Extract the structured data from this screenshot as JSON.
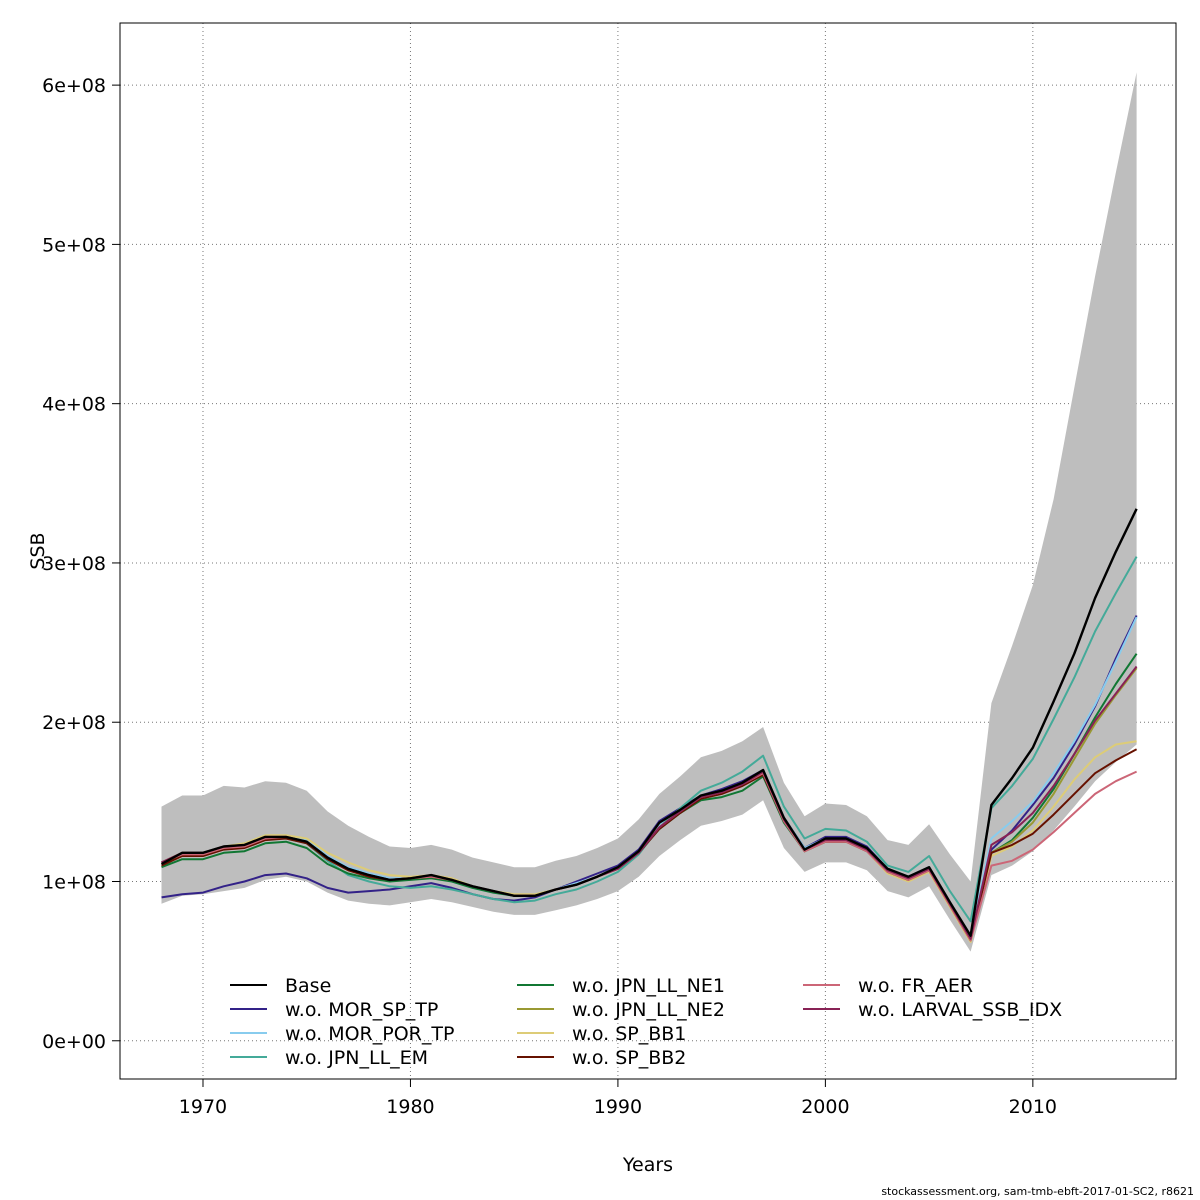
{
  "chart_data": {
    "type": "line",
    "xlabel": "Years",
    "ylabel": "SSB",
    "xlim": [
      1966,
      2016.9
    ],
    "ylim": [
      -24000000,
      639000000
    ],
    "xticks": [
      1970,
      1980,
      1990,
      2000,
      2010
    ],
    "yticks": [
      0,
      100000000,
      200000000,
      300000000,
      400000000,
      500000000,
      600000000
    ],
    "ytick_labels": [
      "0e+00",
      "1e+08",
      "2e+08",
      "3e+08",
      "4e+08",
      "5e+08",
      "6e+08"
    ],
    "grid": true,
    "legend_position": "bottom",
    "x": [
      1968,
      1969,
      1970,
      1971,
      1972,
      1973,
      1974,
      1975,
      1976,
      1977,
      1978,
      1979,
      1980,
      1981,
      1982,
      1983,
      1984,
      1985,
      1986,
      1987,
      1988,
      1989,
      1990,
      1991,
      1992,
      1993,
      1994,
      1995,
      1996,
      1997,
      1998,
      1999,
      2000,
      2001,
      2002,
      2003,
      2004,
      2005,
      2006,
      2007,
      2008,
      2009,
      2010,
      2011,
      2012,
      2013,
      2014,
      2015
    ],
    "band": {
      "color": "#bebebe",
      "lower": [
        86000000,
        91000000,
        92000000,
        94000000,
        96000000,
        101000000,
        103000000,
        100000000,
        93000000,
        88000000,
        86000000,
        85000000,
        87000000,
        89000000,
        87000000,
        84000000,
        81000000,
        79000000,
        79000000,
        82000000,
        85000000,
        89000000,
        94000000,
        103000000,
        116000000,
        126000000,
        135000000,
        138000000,
        142000000,
        151000000,
        121000000,
        106000000,
        112000000,
        112000000,
        107000000,
        94000000,
        90000000,
        97000000,
        76000000,
        56000000,
        104000000,
        110000000,
        119000000,
        132000000,
        147000000,
        163000000,
        175000000,
        186000000
      ],
      "upper": [
        147000000,
        154000000,
        154000000,
        160000000,
        159000000,
        163000000,
        162000000,
        157000000,
        144000000,
        135000000,
        128000000,
        122000000,
        121000000,
        123000000,
        120000000,
        115000000,
        112000000,
        109000000,
        109000000,
        113000000,
        116000000,
        121000000,
        127000000,
        139000000,
        155000000,
        166000000,
        178000000,
        182000000,
        188000000,
        197000000,
        162000000,
        141000000,
        149000000,
        148000000,
        141000000,
        126000000,
        123000000,
        136000000,
        117000000,
        100000000,
        212000000,
        248000000,
        286000000,
        340000000,
        410000000,
        480000000,
        545000000,
        608000000
      ]
    },
    "series": [
      {
        "name": "Base",
        "color": "#000000",
        "values": [
          111000000,
          118000000,
          118000000,
          122000000,
          123000000,
          128000000,
          128000000,
          125000000,
          115000000,
          108000000,
          104000000,
          101000000,
          102000000,
          104000000,
          101000000,
          97000000,
          94000000,
          91000000,
          91000000,
          95000000,
          98000000,
          103000000,
          109000000,
          119000000,
          137000000,
          145000000,
          154000000,
          157000000,
          162000000,
          170000000,
          140000000,
          120000000,
          127000000,
          127000000,
          121000000,
          108000000,
          103000000,
          109000000,
          87000000,
          66000000,
          148000000,
          165000000,
          184000000,
          213000000,
          243000000,
          278000000,
          307000000,
          334000000
        ]
      },
      {
        "name": "w.o. MOR_SP_TP",
        "color": "#332288",
        "values": [
          90000000,
          92000000,
          93000000,
          97000000,
          100000000,
          104000000,
          105000000,
          102000000,
          96000000,
          93000000,
          94000000,
          95000000,
          97000000,
          99000000,
          96000000,
          92000000,
          89000000,
          88000000,
          90000000,
          95000000,
          100000000,
          105000000,
          110000000,
          120000000,
          138000000,
          146000000,
          154000000,
          158000000,
          163000000,
          170000000,
          140000000,
          121000000,
          128000000,
          128000000,
          122000000,
          108000000,
          103000000,
          109000000,
          87000000,
          65000000,
          120000000,
          132000000,
          148000000,
          165000000,
          186000000,
          210000000,
          240000000,
          267000000
        ]
      },
      {
        "name": "w.o. MOR_POR_TP",
        "color": "#88ccee",
        "values": [
          112000000,
          117000000,
          117000000,
          122000000,
          124000000,
          129000000,
          128000000,
          126000000,
          116000000,
          109000000,
          105000000,
          102000000,
          102000000,
          103000000,
          100000000,
          96000000,
          93000000,
          91000000,
          92000000,
          95000000,
          99000000,
          103000000,
          109000000,
          119000000,
          136000000,
          145000000,
          154000000,
          157000000,
          162000000,
          170000000,
          140000000,
          121000000,
          127000000,
          127000000,
          121000000,
          108000000,
          103000000,
          109000000,
          87000000,
          66000000,
          127000000,
          138000000,
          150000000,
          168000000,
          188000000,
          211000000,
          238000000,
          266000000
        ]
      },
      {
        "name": "w.o. JPN_LL_EM",
        "color": "#44aa99",
        "values": [
          112000000,
          118000000,
          118000000,
          121000000,
          124000000,
          128000000,
          127000000,
          124000000,
          113000000,
          104000000,
          100000000,
          97000000,
          96000000,
          97000000,
          95000000,
          92000000,
          89000000,
          87000000,
          88000000,
          92000000,
          95000000,
          100000000,
          106000000,
          117000000,
          134000000,
          146000000,
          157000000,
          162000000,
          169000000,
          179000000,
          147000000,
          127000000,
          133000000,
          132000000,
          125000000,
          110000000,
          106000000,
          116000000,
          94000000,
          75000000,
          146000000,
          160000000,
          177000000,
          202000000,
          228000000,
          257000000,
          281000000,
          304000000
        ]
      },
      {
        "name": "w.o. JPN_LL_NE1",
        "color": "#117733",
        "values": [
          109000000,
          114000000,
          114000000,
          118000000,
          119000000,
          124000000,
          125000000,
          121000000,
          111000000,
          105000000,
          102000000,
          100000000,
          101000000,
          102000000,
          100000000,
          96000000,
          93000000,
          91000000,
          91000000,
          95000000,
          98000000,
          103000000,
          108000000,
          118000000,
          133000000,
          143000000,
          151000000,
          153000000,
          157000000,
          166000000,
          137000000,
          119000000,
          125000000,
          125000000,
          120000000,
          107000000,
          101000000,
          108000000,
          86000000,
          64000000,
          118000000,
          126000000,
          140000000,
          158000000,
          180000000,
          203000000,
          224000000,
          243000000
        ]
      },
      {
        "name": "w.o. JPN_LL_NE2",
        "color": "#999933",
        "values": [
          111000000,
          117000000,
          117000000,
          121000000,
          122000000,
          127000000,
          128000000,
          125000000,
          115000000,
          108000000,
          104000000,
          101000000,
          102000000,
          103000000,
          101000000,
          97000000,
          94000000,
          91000000,
          91000000,
          95000000,
          98000000,
          103000000,
          108000000,
          118000000,
          134000000,
          144000000,
          153000000,
          156000000,
          161000000,
          168000000,
          139000000,
          120000000,
          126000000,
          126000000,
          120000000,
          107000000,
          102000000,
          108000000,
          86000000,
          64000000,
          118000000,
          125000000,
          137000000,
          155000000,
          177000000,
          199000000,
          217000000,
          234000000
        ]
      },
      {
        "name": "w.o. SP_BB1",
        "color": "#ddcc77",
        "values": [
          112000000,
          118000000,
          118000000,
          122000000,
          124000000,
          129000000,
          129000000,
          127000000,
          118000000,
          112000000,
          107000000,
          104000000,
          103000000,
          104000000,
          102000000,
          97000000,
          94000000,
          92000000,
          92000000,
          95000000,
          98000000,
          103000000,
          108000000,
          118000000,
          134000000,
          144000000,
          153000000,
          156000000,
          161000000,
          168000000,
          138000000,
          119000000,
          125000000,
          125000000,
          119000000,
          105000000,
          100000000,
          106000000,
          84000000,
          62000000,
          116000000,
          122000000,
          132000000,
          147000000,
          164000000,
          178000000,
          186000000,
          188000000
        ]
      },
      {
        "name": "w.o. SP_BB2",
        "color": "#661100",
        "values": [
          110000000,
          116000000,
          116000000,
          120000000,
          121000000,
          126000000,
          127000000,
          124000000,
          114000000,
          107000000,
          103000000,
          101000000,
          102000000,
          103000000,
          101000000,
          97000000,
          94000000,
          91000000,
          91000000,
          95000000,
          98000000,
          103000000,
          108000000,
          118000000,
          133000000,
          143000000,
          152000000,
          155000000,
          160000000,
          167000000,
          138000000,
          119000000,
          125000000,
          125000000,
          119000000,
          106000000,
          101000000,
          107000000,
          85000000,
          63000000,
          118000000,
          123000000,
          130000000,
          142000000,
          155000000,
          168000000,
          176000000,
          183000000
        ]
      },
      {
        "name": "w.o. FR_AER",
        "color": "#cc6677",
        "values": [
          112000000,
          117000000,
          117000000,
          121000000,
          122000000,
          127000000,
          128000000,
          125000000,
          115000000,
          108000000,
          104000000,
          101000000,
          102000000,
          103000000,
          101000000,
          97000000,
          94000000,
          91000000,
          91000000,
          95000000,
          98000000,
          103000000,
          108000000,
          118000000,
          134000000,
          144000000,
          153000000,
          156000000,
          161000000,
          168000000,
          138000000,
          119000000,
          125000000,
          125000000,
          119000000,
          106000000,
          101000000,
          107000000,
          85000000,
          63000000,
          110000000,
          113000000,
          120000000,
          131000000,
          143000000,
          155000000,
          163000000,
          169000000
        ]
      },
      {
        "name": "w.o. LARVAL_SSB_IDX",
        "color": "#882255",
        "values": [
          112000000,
          118000000,
          118000000,
          122000000,
          123000000,
          128000000,
          128000000,
          125000000,
          115000000,
          108000000,
          104000000,
          101000000,
          102000000,
          104000000,
          101000000,
          97000000,
          94000000,
          91000000,
          91000000,
          95000000,
          98000000,
          103000000,
          108000000,
          118000000,
          134000000,
          144000000,
          153000000,
          156000000,
          161000000,
          169000000,
          139000000,
          120000000,
          126000000,
          126000000,
          120000000,
          107000000,
          102000000,
          108000000,
          86000000,
          64000000,
          123000000,
          131000000,
          143000000,
          160000000,
          180000000,
          201000000,
          218000000,
          235000000
        ]
      }
    ]
  },
  "footer": "stockassessment.org, sam-tmb-ebft-2017-01-SC2, r8621"
}
